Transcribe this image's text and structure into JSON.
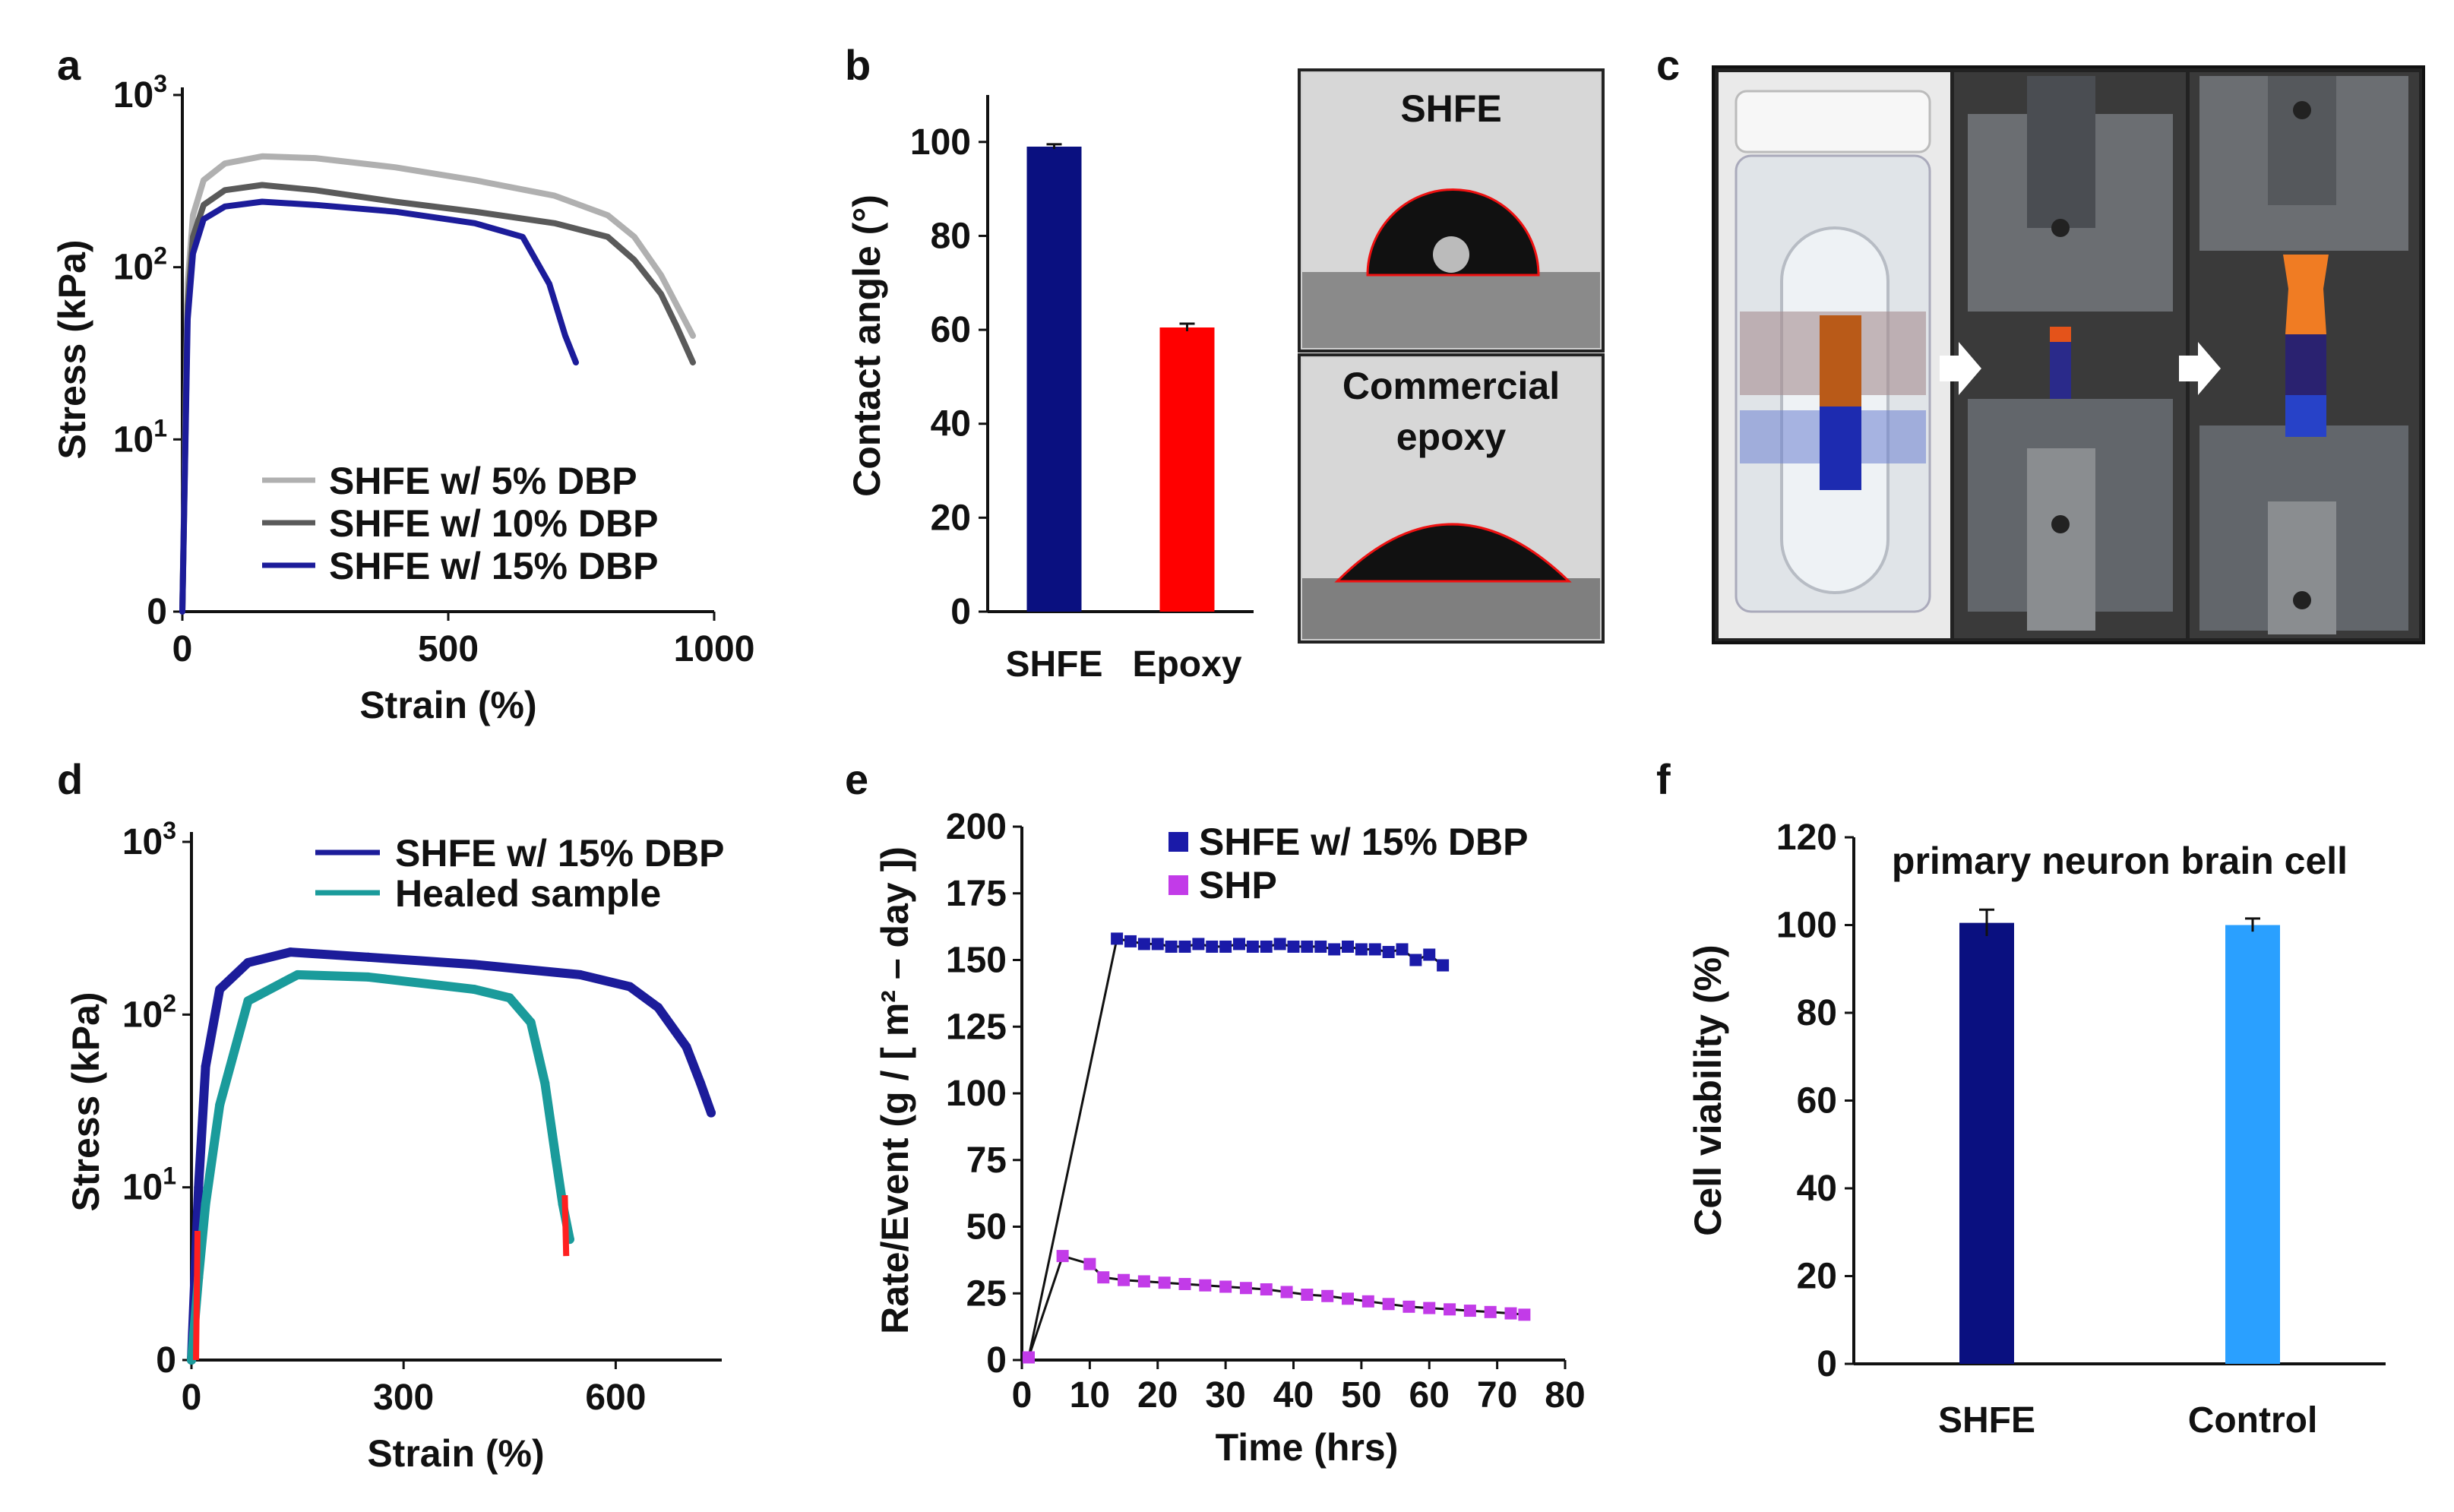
{
  "panels": {
    "a": "a",
    "b": "b",
    "c": "c",
    "d": "d",
    "e": "e",
    "f": "f"
  },
  "chart_data": [
    {
      "id": "a",
      "type": "line",
      "xlabel": "Strain (%)",
      "ylabel": "Stress (kPa)",
      "xlim": [
        0,
        1000
      ],
      "yscale": "log",
      "xticks": [
        "0",
        "500",
        "1000"
      ],
      "yticks": [
        "0",
        "10^1",
        "10^2",
        "10^3"
      ],
      "series": [
        {
          "name": "SHFE w/ 5% DBP",
          "color": "#b0b0b0",
          "x": [
            0,
            10,
            20,
            40,
            80,
            150,
            250,
            400,
            550,
            700,
            800,
            850,
            900,
            930,
            960
          ],
          "y": [
            1,
            80,
            200,
            320,
            400,
            440,
            430,
            380,
            320,
            260,
            200,
            150,
            90,
            60,
            40
          ]
        },
        {
          "name": "SHFE w/ 10% DBP",
          "color": "#5a5a5a",
          "x": [
            0,
            10,
            20,
            40,
            80,
            150,
            250,
            400,
            550,
            700,
            800,
            850,
            900,
            930,
            960
          ],
          "y": [
            1,
            60,
            150,
            230,
            280,
            300,
            280,
            240,
            210,
            180,
            150,
            110,
            70,
            45,
            28
          ]
        },
        {
          "name": "SHFE w/ 15% DBP",
          "color": "#1c1c9a",
          "x": [
            0,
            10,
            20,
            40,
            80,
            150,
            250,
            400,
            550,
            640,
            690,
            720,
            740
          ],
          "y": [
            1,
            50,
            120,
            190,
            225,
            240,
            230,
            210,
            180,
            150,
            80,
            40,
            28
          ]
        }
      ]
    },
    {
      "id": "b",
      "type": "bar",
      "ylabel": "Contact angle (°)",
      "ylim": [
        0,
        110
      ],
      "yticks": [
        0,
        20,
        40,
        60,
        80,
        100
      ],
      "categories": [
        "SHFE",
        "Epoxy"
      ],
      "values": [
        99,
        60.5
      ],
      "errors": [
        0.5,
        0.8
      ],
      "colors": [
        "#0a1080",
        "#ff0000"
      ]
    },
    {
      "id": "d",
      "type": "line",
      "xlabel": "Strain (%)",
      "ylabel": "Stress (kPa)",
      "xlim": [
        0,
        750
      ],
      "yscale": "log",
      "xticks": [
        "0",
        "300",
        "600"
      ],
      "yticks": [
        "0",
        "10^1",
        "10^2",
        "10^3"
      ],
      "series": [
        {
          "name": "SHFE w/ 15% DBP",
          "color": "#1c1c9a",
          "x": [
            0,
            10,
            20,
            40,
            80,
            140,
            250,
            400,
            550,
            620,
            660,
            700,
            720,
            735
          ],
          "y": [
            1,
            10,
            50,
            140,
            200,
            230,
            215,
            195,
            170,
            145,
            110,
            65,
            40,
            27
          ]
        },
        {
          "name": "Healed sample",
          "color": "#1a9b9b",
          "x": [
            0,
            10,
            20,
            40,
            80,
            150,
            250,
            400,
            450,
            480,
            500,
            515,
            525,
            535
          ],
          "y": [
            1,
            3,
            8,
            30,
            120,
            170,
            165,
            140,
            125,
            90,
            40,
            15,
            8,
            5
          ]
        }
      ]
    },
    {
      "id": "e",
      "type": "scatter",
      "xlabel": "Time (hrs)",
      "ylabel": "Rate/Event (g / [ m² – day ])",
      "xlim": [
        0,
        80
      ],
      "ylim": [
        0,
        200
      ],
      "xticks": [
        0,
        10,
        20,
        30,
        40,
        50,
        60,
        70,
        80
      ],
      "yticks": [
        0,
        25,
        50,
        75,
        100,
        125,
        150,
        175,
        200
      ],
      "series": [
        {
          "name": "SHFE w/ 15% DBP",
          "color": "#1a1aa8",
          "x": [
            1,
            14,
            16,
            18,
            20,
            22,
            24,
            26,
            28,
            30,
            32,
            34,
            36,
            38,
            40,
            42,
            44,
            46,
            48,
            50,
            52,
            54,
            56,
            58,
            60,
            62
          ],
          "y": [
            1,
            158,
            157,
            156,
            156,
            155,
            155,
            156,
            155,
            155,
            156,
            155,
            155,
            156,
            155,
            155,
            155,
            154,
            155,
            154,
            154,
            153,
            154,
            150,
            152,
            148
          ]
        },
        {
          "name": "SHP",
          "color": "#c23be8",
          "x": [
            1,
            6,
            10,
            12,
            15,
            18,
            21,
            24,
            27,
            30,
            33,
            36,
            39,
            42,
            45,
            48,
            51,
            54,
            57,
            60,
            63,
            66,
            69,
            72,
            74
          ],
          "y": [
            1,
            39,
            36,
            31,
            30,
            29.5,
            29,
            28.5,
            28,
            27.5,
            27,
            26.5,
            25.5,
            24.5,
            24,
            23,
            22,
            21,
            20,
            19.5,
            19,
            18.5,
            18,
            17.5,
            17
          ]
        }
      ]
    },
    {
      "id": "f",
      "type": "bar",
      "title": "primary neuron brain cell",
      "ylabel": "Cell viability (%)",
      "ylim": [
        0,
        120
      ],
      "yticks": [
        0,
        20,
        40,
        60,
        80,
        100,
        120
      ],
      "categories": [
        "SHFE",
        "Control"
      ],
      "values": [
        100.5,
        100
      ],
      "errors": [
        3,
        1.5
      ],
      "colors": [
        "#0a1080",
        "#2aa0ff"
      ]
    }
  ],
  "photos": {
    "b_top": "SHFE",
    "b_bottom_line1": "Commercial",
    "b_bottom_line2": "epoxy"
  }
}
